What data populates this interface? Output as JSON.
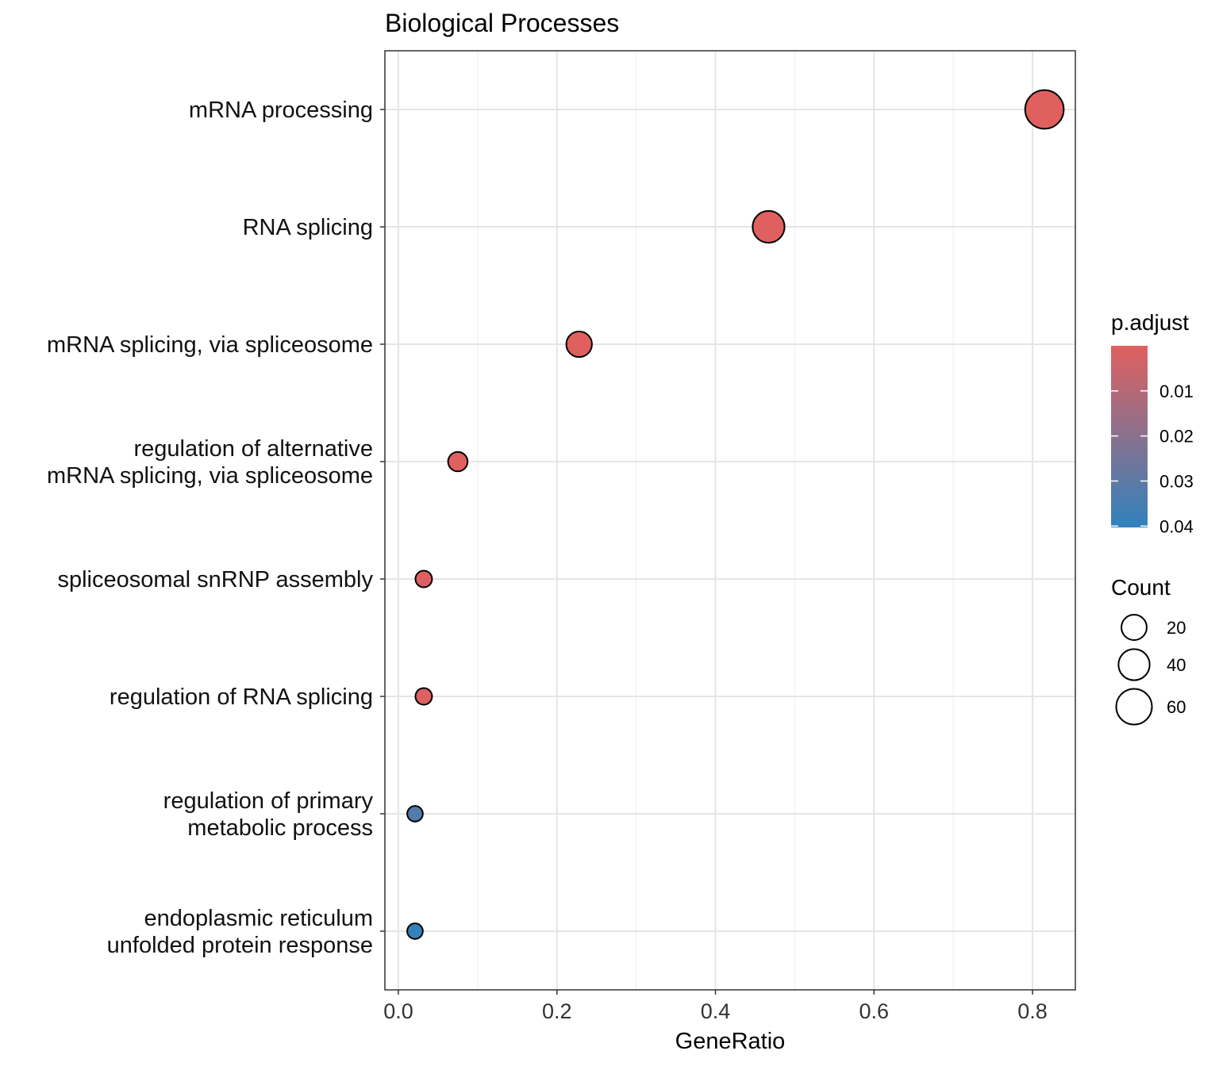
{
  "chart_data": {
    "type": "scatter",
    "title": "Biological Processes",
    "xlabel": "GeneRatio",
    "ylabel": "",
    "xlim": [
      -0.017,
      0.854
    ],
    "x_ticks": [
      "0.0",
      "0.2",
      "0.4",
      "0.6",
      "0.8"
    ],
    "x_tick_values": [
      0,
      0.2,
      0.4,
      0.6,
      0.8
    ],
    "grid": true,
    "categories": [
      [
        "mRNA processing"
      ],
      [
        "RNA splicing"
      ],
      [
        "mRNA splicing, via spliceosome"
      ],
      [
        "regulation of alternative",
        "mRNA splicing, via spliceosome"
      ],
      [
        "spliceosomal snRNP assembly"
      ],
      [
        "regulation of RNA splicing"
      ],
      [
        "regulation of primary",
        "metabolic process"
      ],
      [
        "endoplasmic reticulum",
        "unfolded protein response"
      ]
    ],
    "gene_ratio": [
      0.815,
      0.467,
      0.228,
      0.075,
      0.032,
      0.032,
      0.021,
      0.021
    ],
    "count": [
      75,
      43,
      21,
      7,
      3,
      3,
      2,
      2
    ],
    "p_adjust": [
      0.0002,
      0.0002,
      0.0003,
      0.0005,
      0.001,
      0.001,
      0.033,
      0.04
    ],
    "color_legend": {
      "title": "p.adjust",
      "range": [
        0.0,
        0.0403
      ],
      "ticks": [
        "0.01",
        "0.02",
        "0.03",
        "0.04"
      ],
      "tick_values": [
        0.01,
        0.02,
        0.03,
        0.04
      ],
      "low_color": "#E0605E",
      "high_color": "#3182BD"
    },
    "size_legend": {
      "title": "Count",
      "labels": [
        "20",
        "40",
        "60"
      ],
      "values": [
        20,
        40,
        60
      ]
    },
    "legend_placement": "right"
  }
}
